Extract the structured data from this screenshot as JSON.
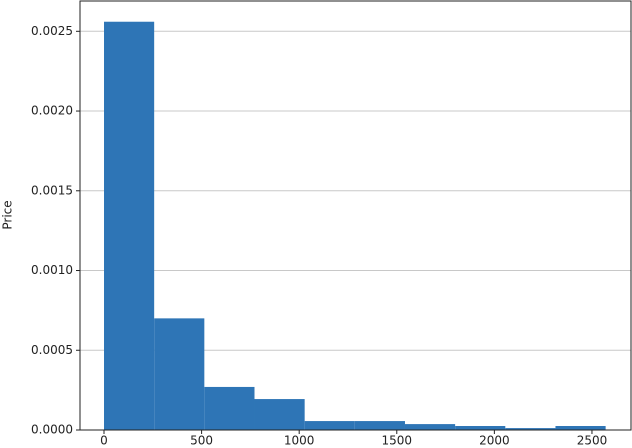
{
  "chart_data": {
    "type": "histogram",
    "y_label": "Price",
    "bins": [
      0,
      257,
      514,
      771,
      1028,
      1285,
      1542,
      1799,
      2056,
      2313,
      2570
    ],
    "values": [
      0.00256,
      0.0007,
      0.00027,
      0.000194,
      5.6e-05,
      5.6e-05,
      3.7e-05,
      2.5e-05,
      1.2e-05,
      2.5e-05
    ],
    "color": "#2e75b6",
    "xlim": [
      -123,
      2700
    ],
    "xticks": [
      0,
      500,
      1000,
      1500,
      2000,
      2500
    ],
    "ylim": [
      0,
      0.00269
    ],
    "yticks": [
      {
        "value": 0,
        "label": "0.0000"
      },
      {
        "value": 0.0005,
        "label": "0.0005"
      },
      {
        "value": 0.001,
        "label": "0.0010"
      },
      {
        "value": 0.0015,
        "label": "0.0015"
      },
      {
        "value": 0.002,
        "label": "0.0020"
      },
      {
        "value": 0.0025,
        "label": "0.0025"
      }
    ],
    "grid": true
  }
}
